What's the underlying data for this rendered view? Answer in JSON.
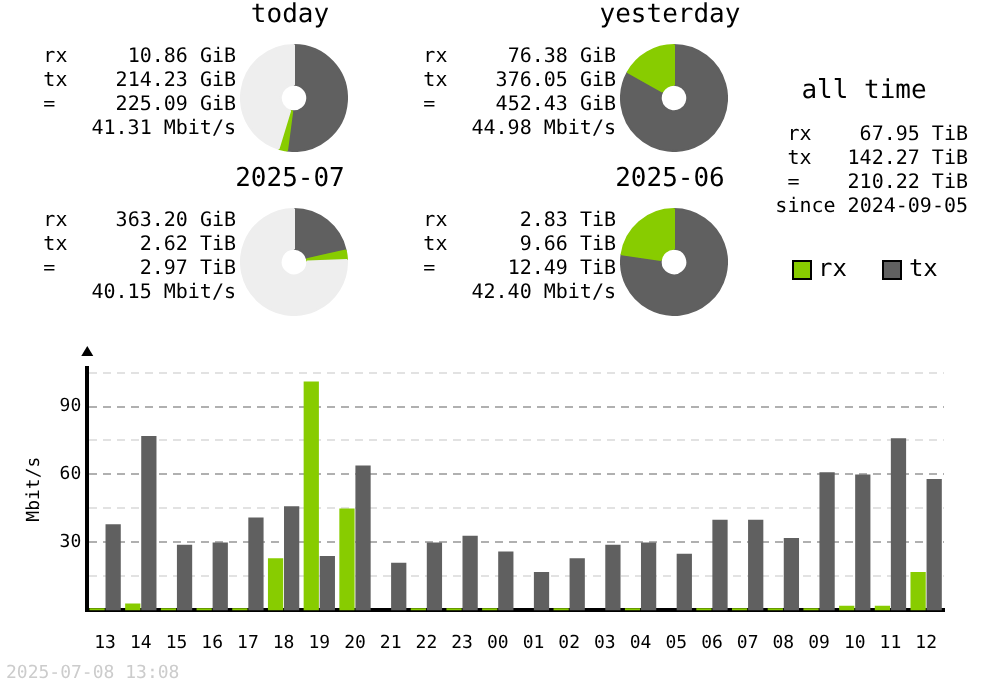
{
  "chart_data": [
    {
      "type": "donut",
      "title": "today",
      "categories": [
        null,
        null,
        null
      ],
      "values": [
        52.1,
        2.6,
        45.3
      ],
      "colors": [
        "#606060",
        "#88cc00",
        "#eeeeee"
      ],
      "annotations": [
        "rx     10.86 GiB",
        "tx    214.23 GiB",
        "=     225.09 GiB",
        "41.31 Mbit/s"
      ]
    },
    {
      "type": "donut",
      "title": "yesterday",
      "categories": [
        null,
        null
      ],
      "values": [
        83.1,
        16.9
      ],
      "colors": [
        "#606060",
        "#88cc00"
      ],
      "annotations": [
        "rx     76.38 GiB",
        "tx    376.05 GiB",
        "=     452.43 GiB",
        "44.98 Mbit/s"
      ]
    },
    {
      "type": "other",
      "title": "all time",
      "annotations": [
        "rx    67.95 TiB",
        "tx   142.27 TiB",
        "=    210.22 TiB",
        "since 2024-09-05"
      ]
    },
    {
      "type": "donut",
      "title": "2025-07",
      "categories": [
        null,
        null,
        null
      ],
      "values": [
        21.5,
        2.9,
        75.6
      ],
      "colors": [
        "#606060",
        "#88cc00",
        "#eeeeee"
      ],
      "annotations": [
        "rx    363.20 GiB",
        "tx      2.62 TiB",
        "=       2.97 TiB",
        "40.15 Mbit/s"
      ]
    },
    {
      "type": "donut",
      "title": "2025-06",
      "categories": [
        null,
        null
      ],
      "values": [
        77.3,
        22.7
      ],
      "colors": [
        "#606060",
        "#88cc00"
      ],
      "annotations": [
        "rx      2.83 TiB",
        "tx      9.66 TiB",
        "=      12.49 TiB",
        "42.40 Mbit/s"
      ]
    },
    {
      "type": "bar",
      "ylabel": "Mbit/s",
      "categories": [
        "13",
        "14",
        "15",
        "16",
        "17",
        "18",
        "19",
        "20",
        "21",
        "22",
        "23",
        "00",
        "01",
        "02",
        "03",
        "04",
        "05",
        "06",
        "07",
        "08",
        "09",
        "10",
        "11",
        "12"
      ],
      "series": [
        {
          "name": "rx",
          "color": "#88cc00",
          "values": [
            1,
            3,
            1,
            1,
            1,
            23,
            101,
            45,
            0,
            1,
            1,
            1,
            0,
            1,
            0,
            1,
            0,
            1,
            1,
            1,
            1,
            2,
            2,
            17
          ]
        },
        {
          "name": "tx",
          "color": "#606060",
          "values": [
            38,
            77,
            29,
            30,
            41,
            46,
            24,
            64,
            21,
            30,
            33,
            26,
            17,
            23,
            29,
            30,
            25,
            40,
            40,
            32,
            61,
            60,
            76,
            58
          ]
        }
      ],
      "ylim": [
        0,
        107
      ],
      "yticks": [
        {
          "value": 15,
          "label": null
        },
        30,
        {
          "value": 45,
          "label": null
        },
        60,
        {
          "value": 75,
          "label": null
        },
        90,
        {
          "value": 105,
          "label": null
        }
      ],
      "grid": "y",
      "legend": "top right",
      "annotations": [
        "2025-07-08 13:08"
      ]
    }
  ]
}
